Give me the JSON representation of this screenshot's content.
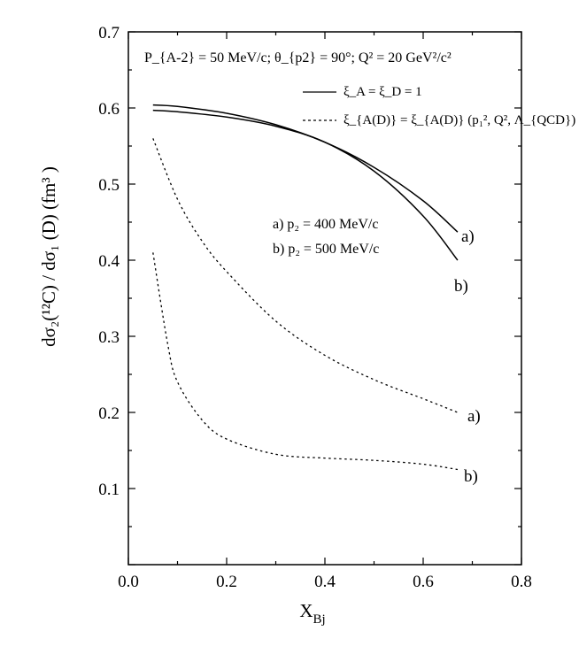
{
  "chart_data": {
    "type": "line",
    "xlabel": "X",
    "xlabel_sub": "Bj",
    "ylabel": "dσ₂(¹²C) / dσ₁ (D) (fm³ )",
    "xlim": [
      0.0,
      0.8
    ],
    "ylim": [
      0.0,
      0.7
    ],
    "xticks": [
      "0.0",
      "0.2",
      "0.4",
      "0.6",
      "0.8"
    ],
    "yticks": [
      "0.1",
      "0.2",
      "0.3",
      "0.4",
      "0.5",
      "0.6",
      "0.7"
    ],
    "header": "P_{A-2} = 50 MeV/c;   θ_{p2} = 90°;   Q² = 20 GeV²/c²",
    "legend": [
      {
        "style": "solid",
        "label": "ξ_A = ξ_D = 1"
      },
      {
        "style": "dotted",
        "label": "ξ_{A(D)} = ξ_{A(D)} (p₁², Q², Λ_{QCD})"
      }
    ],
    "momentum_labels": [
      "a) p₂ = 400 MeV/c",
      "b) p₂ = 500 MeV/c"
    ],
    "series": [
      {
        "name": "a) solid",
        "style": "solid",
        "end_label": "a)",
        "x": [
          0.05,
          0.1,
          0.2,
          0.3,
          0.4,
          0.5,
          0.6,
          0.67
        ],
        "y": [
          0.604,
          0.602,
          0.593,
          0.578,
          0.555,
          0.522,
          0.478,
          0.437
        ]
      },
      {
        "name": "b) solid",
        "style": "solid",
        "end_label": "b)",
        "x": [
          0.05,
          0.1,
          0.2,
          0.3,
          0.4,
          0.5,
          0.6,
          0.67
        ],
        "y": [
          0.597,
          0.595,
          0.588,
          0.576,
          0.555,
          0.517,
          0.458,
          0.4
        ]
      },
      {
        "name": "a) dotted",
        "style": "dotted",
        "end_label": "a)",
        "x": [
          0.05,
          0.1,
          0.15,
          0.2,
          0.3,
          0.4,
          0.5,
          0.6,
          0.67
        ],
        "y": [
          0.56,
          0.48,
          0.425,
          0.385,
          0.32,
          0.275,
          0.243,
          0.218,
          0.2
        ]
      },
      {
        "name": "b) dotted",
        "style": "dotted",
        "end_label": "b)",
        "x": [
          0.05,
          0.08,
          0.1,
          0.15,
          0.2,
          0.3,
          0.4,
          0.5,
          0.6,
          0.67
        ],
        "y": [
          0.41,
          0.29,
          0.24,
          0.19,
          0.165,
          0.145,
          0.14,
          0.137,
          0.132,
          0.125
        ]
      }
    ]
  }
}
